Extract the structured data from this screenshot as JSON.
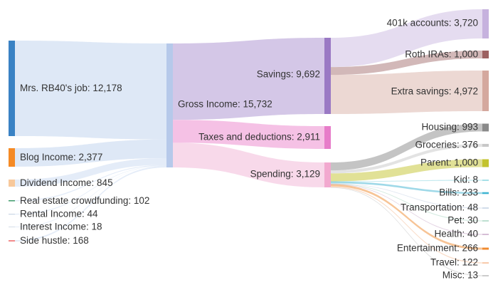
{
  "chart_data": {
    "type": "sankey",
    "title": "",
    "units": "",
    "sources": [
      {
        "id": "job",
        "label": "Mrs. RB40's job: 12,178",
        "value": 12178,
        "color": "#3a82c4"
      },
      {
        "id": "blog",
        "label": "Blog Income: 2,377",
        "value": 2377,
        "color": "#f58a25"
      },
      {
        "id": "dividend",
        "label": "Dividend Income: 845",
        "value": 845,
        "color": "#f7c89b"
      },
      {
        "id": "crowd",
        "label": "Real estate crowdfunding: 102",
        "value": 102,
        "color": "#3f9b6b"
      },
      {
        "id": "rental",
        "label": "Rental Income: 44",
        "value": 44,
        "color": "#c9d6e4"
      },
      {
        "id": "interest",
        "label": "Interest Income: 18",
        "value": 18,
        "color": "#d4dde8"
      },
      {
        "id": "hustle",
        "label": "Side hustle: 168",
        "value": 168,
        "color": "#f28b8b"
      }
    ],
    "hub": {
      "id": "gross",
      "label": "Gross Income: 15,732",
      "value": 15732,
      "color": "#b6c9ea"
    },
    "middle": [
      {
        "id": "savings",
        "label": "Savings: 9,692",
        "value": 9692,
        "color": "#9a79c4"
      },
      {
        "id": "taxes",
        "label": "Taxes and deductions: 2,911",
        "value": 2911,
        "color": "#e77cc9"
      },
      {
        "id": "spending",
        "label": "Spending: 3,129",
        "value": 3129,
        "color": "#f2a9cf"
      }
    ],
    "savings_targets": [
      {
        "id": "k401",
        "label": "401k accounts: 3,720",
        "value": 3720,
        "color": "#c6b2de"
      },
      {
        "id": "roth",
        "label": "Roth IRAs: 1,000",
        "value": 1000,
        "color": "#9c6161"
      },
      {
        "id": "extra",
        "label": "Extra savings: 4,972",
        "value": 4972,
        "color": "#d4a89e"
      }
    ],
    "spending_targets": [
      {
        "id": "housing",
        "label": "Housing: 993",
        "value": 993,
        "color": "#8a8a8a"
      },
      {
        "id": "groceries",
        "label": "Groceries: 376",
        "value": 376,
        "color": "#c8c8c8"
      },
      {
        "id": "parent",
        "label": "Parent: 1,000",
        "value": 1000,
        "color": "#c3c32e"
      },
      {
        "id": "kid",
        "label": "Kid: 8",
        "value": 8,
        "color": "#8ad6e0"
      },
      {
        "id": "bills",
        "label": "Bills: 233",
        "value": 233,
        "color": "#3fb4d2"
      },
      {
        "id": "transport",
        "label": "Transportation: 48",
        "value": 48,
        "color": "#c2d0e3"
      },
      {
        "id": "pet",
        "label": "Pet: 30",
        "value": 30,
        "color": "#a8d6c2"
      },
      {
        "id": "health",
        "label": "Health: 40",
        "value": 40,
        "color": "#c8a8c8"
      },
      {
        "id": "entertainment",
        "label": "Entertainment: 266",
        "value": 266,
        "color": "#f08a2e"
      },
      {
        "id": "travel",
        "label": "Travel: 122",
        "value": 122,
        "color": "#f6b98f"
      },
      {
        "id": "misc",
        "label": "Misc: 13",
        "value": 13,
        "color": "#bbbbbb"
      }
    ]
  }
}
